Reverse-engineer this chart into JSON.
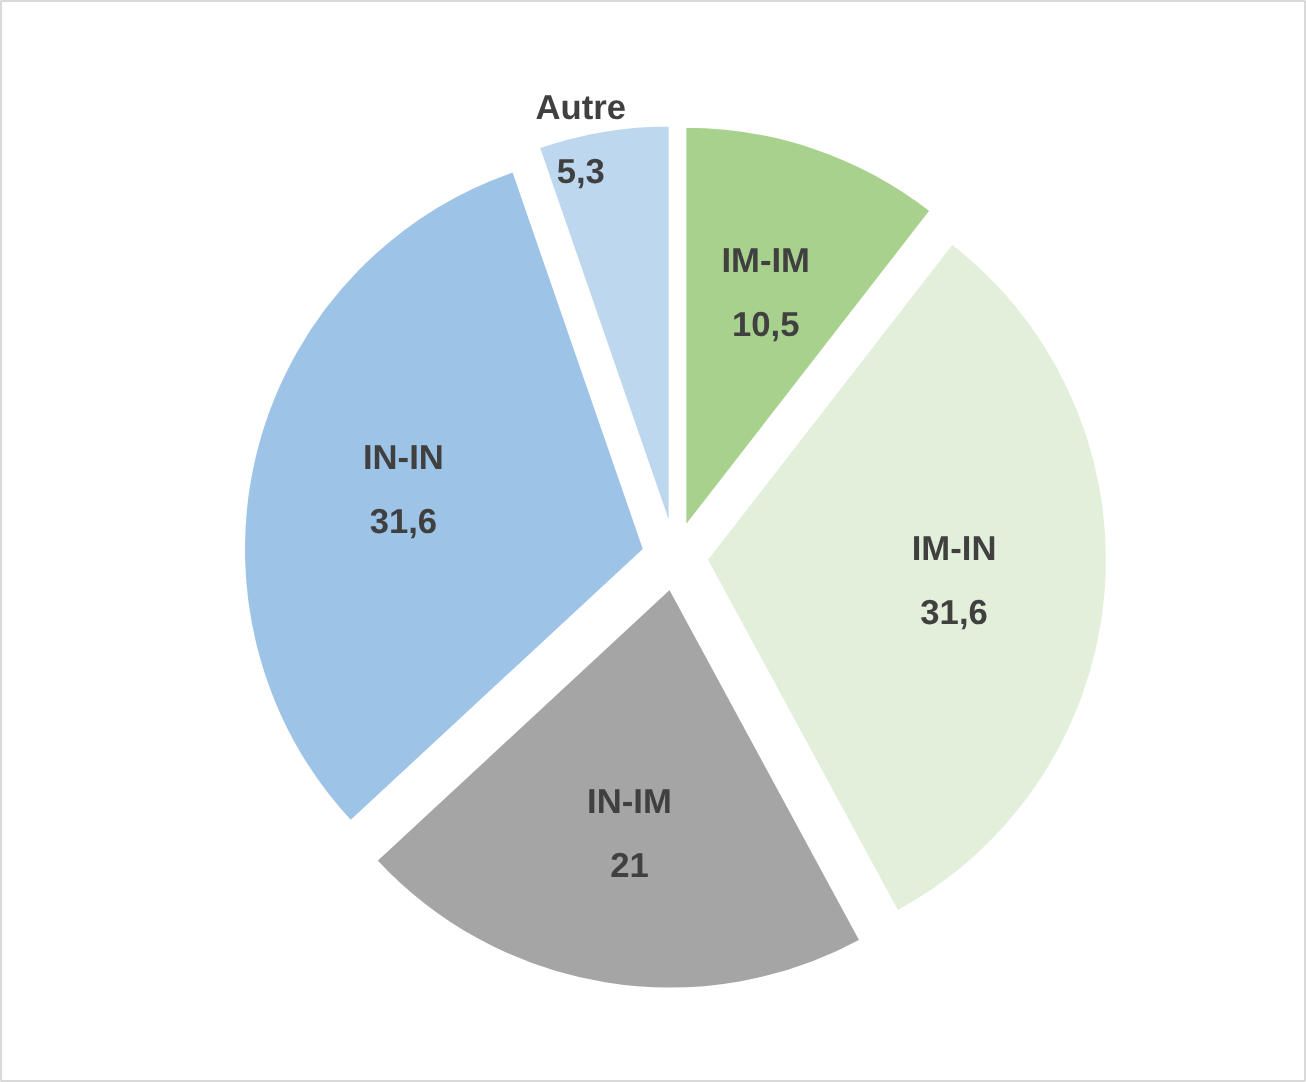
{
  "chart_data": {
    "type": "pie",
    "categories": [
      "IM-IM",
      "IM-IN",
      "IN-IM",
      "IN-IN",
      "Autre"
    ],
    "values": [
      10.5,
      31.6,
      21,
      31.6,
      5.3
    ],
    "colors": [
      "#a9d18e",
      "#e2efda",
      "#a5a5a5",
      "#9dc3e6",
      "#bdd7ee"
    ],
    "value_labels": [
      "10,5",
      "31,6",
      "21",
      "31,6",
      "5,3"
    ]
  }
}
